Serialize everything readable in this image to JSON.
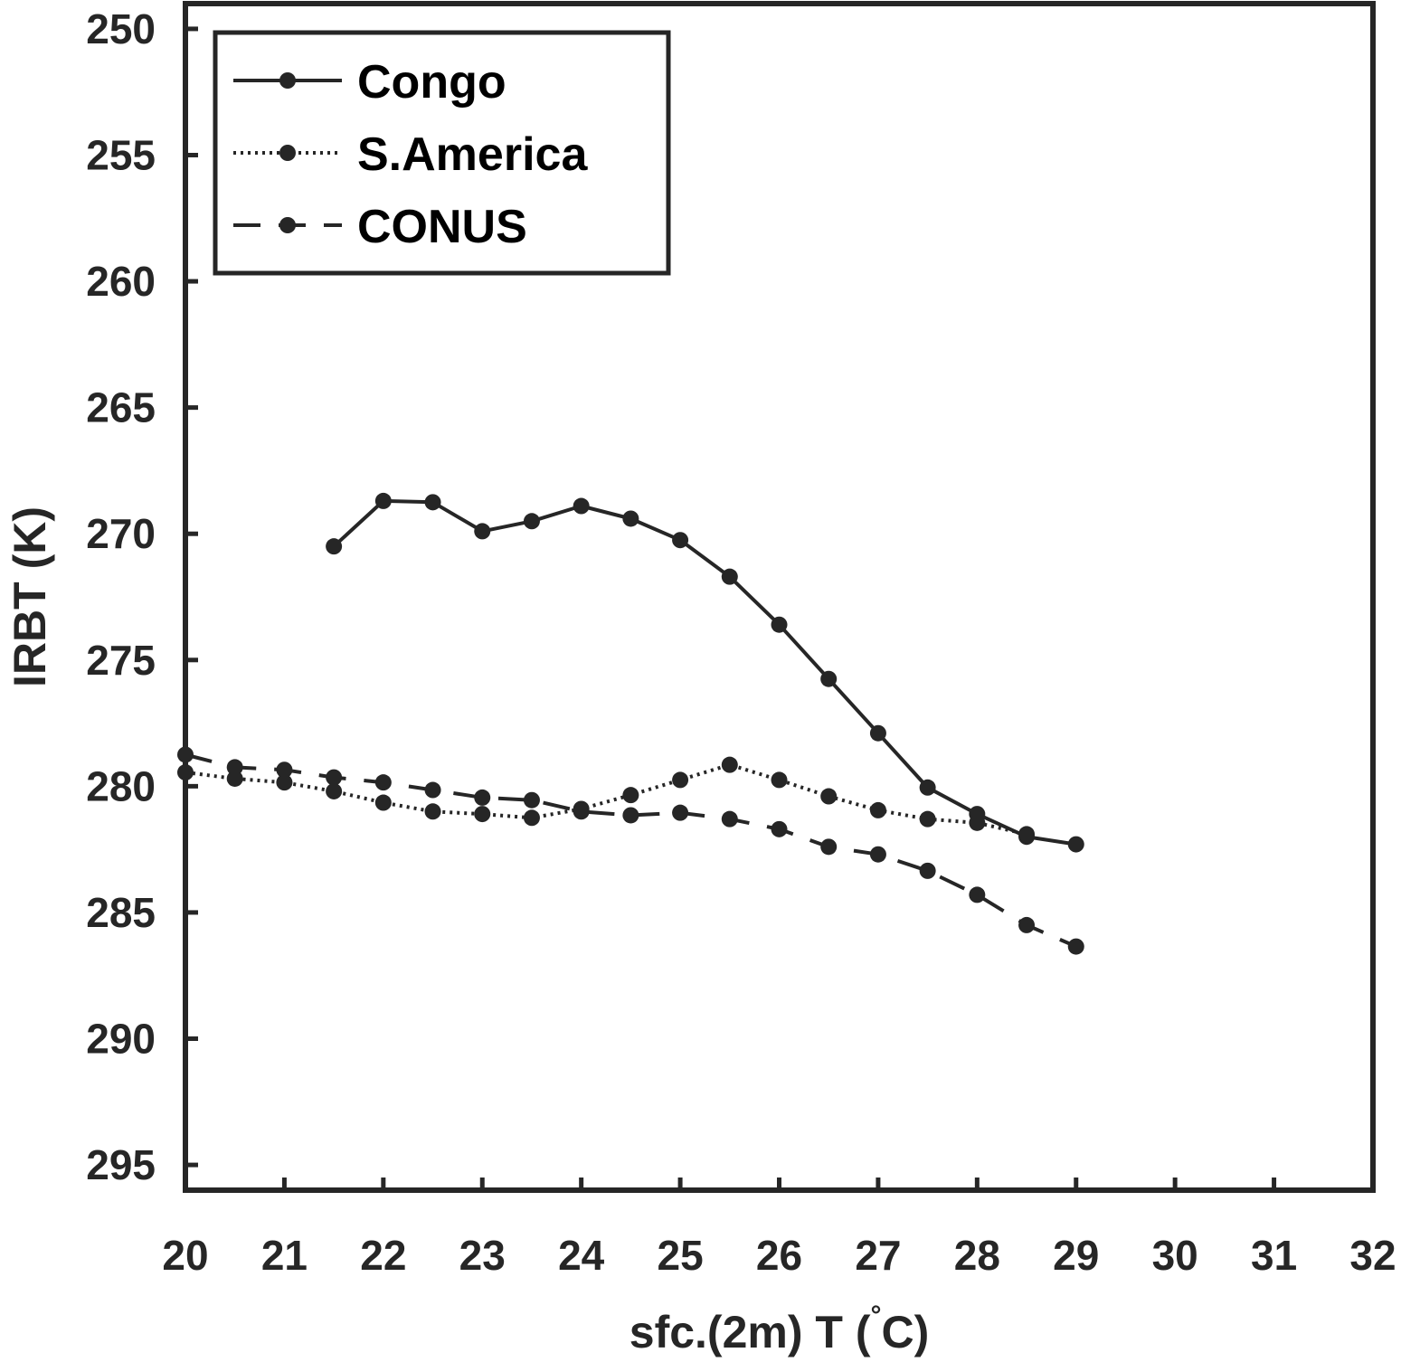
{
  "chart_data": {
    "type": "line",
    "xlabel": "sfc.(2m) T (°C)",
    "xlabel_parts": [
      "sfc.(2m) T (",
      "°",
      "C)"
    ],
    "ylabel": "IRBT (K)",
    "xlim": [
      20,
      32
    ],
    "ylim": [
      249,
      296
    ],
    "y_reversed": true,
    "xticks": [
      20,
      21,
      22,
      23,
      24,
      25,
      26,
      27,
      28,
      29,
      30,
      31,
      32
    ],
    "yticks": [
      250,
      255,
      260,
      265,
      270,
      275,
      280,
      285,
      290,
      295
    ],
    "grid": false,
    "legend_position": "top-left",
    "color": "#262626",
    "series": [
      {
        "name": "Congo",
        "style": "solid",
        "x": [
          21.5,
          22,
          22.5,
          23,
          23.5,
          24,
          24.5,
          25,
          25.5,
          26,
          26.5,
          27,
          27.5,
          28,
          28.5,
          29
        ],
        "y": [
          270.5,
          268.7,
          268.75,
          269.9,
          269.5,
          268.9,
          269.4,
          270.25,
          271.7,
          273.6,
          275.75,
          277.9,
          280.05,
          281.1,
          282.0,
          282.3
        ]
      },
      {
        "name": "S.America",
        "style": "dotted",
        "x": [
          20,
          20.5,
          21,
          21.5,
          22,
          22.5,
          23,
          23.5,
          24,
          24.5,
          25,
          25.5,
          26,
          26.5,
          27,
          27.5,
          28,
          28.5
        ],
        "y": [
          279.45,
          279.7,
          279.85,
          280.2,
          280.65,
          281.0,
          281.1,
          281.25,
          280.9,
          280.35,
          279.75,
          279.15,
          279.75,
          280.4,
          280.95,
          281.3,
          281.45,
          281.9
        ]
      },
      {
        "name": "CONUS",
        "style": "dashed",
        "x": [
          20,
          20.5,
          21,
          21.5,
          22,
          22.5,
          23,
          23.5,
          24,
          24.5,
          25,
          25.5,
          26,
          26.5,
          27,
          27.5,
          28,
          28.5,
          29
        ],
        "y": [
          278.75,
          279.25,
          279.35,
          279.65,
          279.85,
          280.15,
          280.45,
          280.55,
          281.0,
          281.15,
          281.05,
          281.3,
          281.7,
          282.4,
          282.7,
          283.35,
          284.3,
          285.5,
          286.35
        ]
      }
    ]
  }
}
